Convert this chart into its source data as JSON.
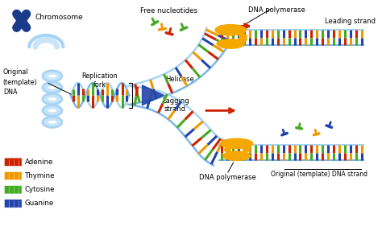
{
  "bg_color": "#ffffff",
  "labels": {
    "chromosome": "Chromosome",
    "original_dna": "Original\n(template)\nDNA",
    "replication_fork": "Replication\nfork",
    "free_nucleotides": "Free nucleotides",
    "dna_polymerase_top": "DNA polymerase",
    "leading_strand": "Leading strand",
    "helicase": "Helicase",
    "lagging_strand": "Lagging\nstrand",
    "dna_polymerase_bottom": "DNA polymerase",
    "original_template_strand": "Original (template) DNA strand"
  },
  "legend": [
    {
      "label": "Adenine",
      "color": "#cc2200"
    },
    {
      "label": "Thymine",
      "color": "#ee9900"
    },
    {
      "label": "Cytosine",
      "color": "#44aa22"
    },
    {
      "label": "Guanine",
      "color": "#2244aa"
    }
  ],
  "colors": {
    "adenine": "#cc2200",
    "thymine": "#ee9900",
    "cytosine": "#44aa22",
    "guanine": "#2244aa",
    "backbone": "#a8d4f5",
    "backbone2": "#7ab8e8",
    "chromosome": "#1a3a8a",
    "helicase": "#2244aa",
    "polymerase": "#f5a800",
    "arrow_red": "#cc2200",
    "text": "#111111"
  }
}
